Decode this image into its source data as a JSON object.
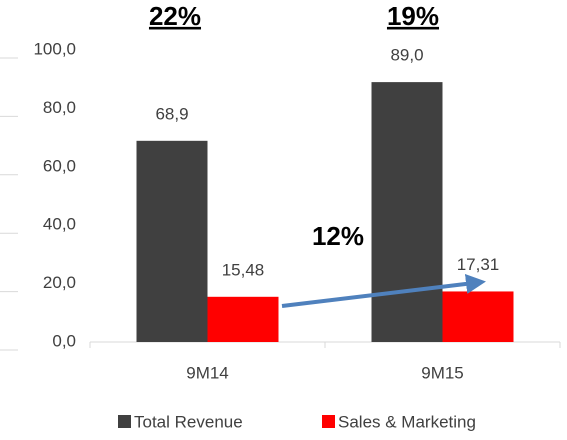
{
  "chart_data": {
    "type": "bar",
    "categories": [
      "9M14",
      "9M15"
    ],
    "series": [
      {
        "name": "Total Revenue",
        "color": "#404040",
        "values": [
          68.9,
          89.0
        ],
        "value_labels": [
          "68,9",
          "89,0"
        ]
      },
      {
        "name": "Sales & Marketing",
        "color": "#ff0000",
        "values": [
          15.48,
          17.31
        ],
        "value_labels": [
          "15,48",
          "17,31"
        ]
      }
    ],
    "ylim": [
      0,
      100
    ],
    "yticks": [
      {
        "value": 0,
        "label": "0,0"
      },
      {
        "value": 20,
        "label": "20,0"
      },
      {
        "value": 40,
        "label": "40,0"
      },
      {
        "value": 60,
        "label": "60,0"
      },
      {
        "value": 80,
        "label": "80,0"
      },
      {
        "value": 100,
        "label": "100,0"
      }
    ],
    "grid": false,
    "legend": "bottom",
    "annotations": [
      "22%",
      "19%",
      "12%"
    ]
  }
}
